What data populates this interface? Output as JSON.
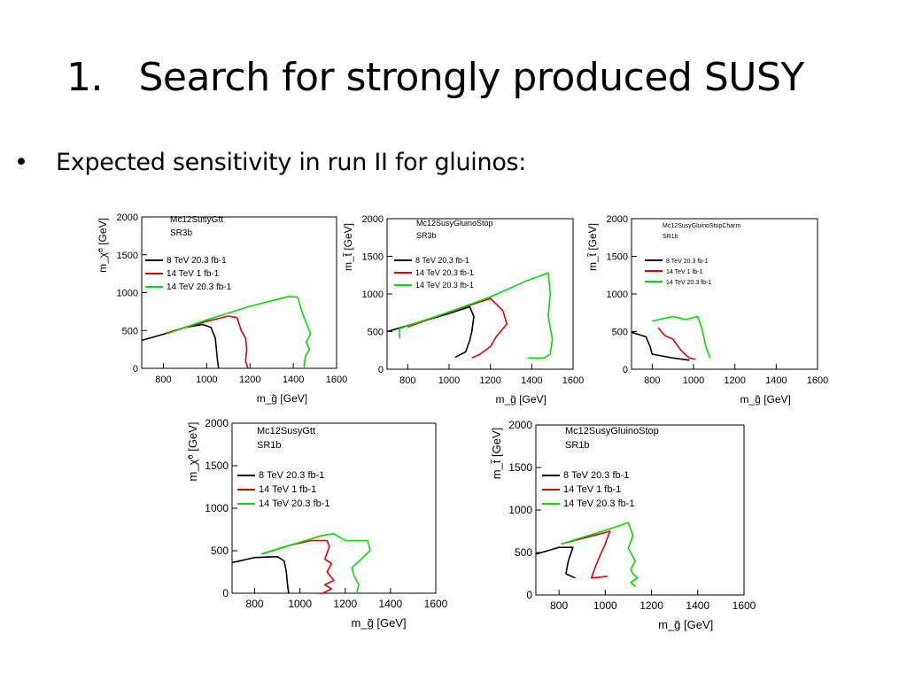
{
  "slide": {
    "title": "1.   Search for strongly produced SUSY",
    "bullet_marker": "•",
    "bullet": "Expected sensitivity in run II for gluinos:"
  },
  "colors": {
    "8tev": "#000000",
    "14tev_1fb": "#e00000",
    "14tev_203fb": "#00dd00",
    "axes": "#000000",
    "background": "#ffffff"
  },
  "chart_data": [
    {
      "type": "line",
      "title_lines": [
        "Mc12SusyGtt",
        "SR3b"
      ],
      "xlabel": "m_g̃ [GeV]",
      "ylabel": "m_χ̃⁰ [GeV]",
      "xlim": [
        700,
        1600
      ],
      "ylim": [
        0,
        2000
      ],
      "xticks": [
        800,
        1000,
        1200,
        1400,
        1600
      ],
      "yticks": [
        0,
        500,
        1000,
        1500,
        2000
      ],
      "legend": [
        "8 TeV 20.3 fb-1",
        "14 TeV 1 fb-1",
        "14 TeV 20.3 fb-1"
      ],
      "series": [
        {
          "name": "8 TeV 20.3 fb-1",
          "x": [
            700,
            800,
            900,
            980,
            1020,
            1040,
            1045,
            1050,
            1055
          ],
          "y": [
            370,
            450,
            540,
            580,
            540,
            400,
            250,
            100,
            0
          ]
        },
        {
          "name": "14 TeV 1 fb-1",
          "x": [
            810,
            900,
            1000,
            1100,
            1140,
            1160,
            1180,
            1185,
            1180,
            1190
          ],
          "y": [
            460,
            540,
            620,
            690,
            670,
            500,
            400,
            250,
            100,
            0
          ]
        },
        {
          "name": "14 TeV 20.3 fb-1",
          "x": [
            820,
            1000,
            1200,
            1380,
            1420,
            1440,
            1460,
            1480,
            1460,
            1475,
            1455,
            1450
          ],
          "y": [
            460,
            640,
            820,
            950,
            940,
            750,
            600,
            450,
            350,
            250,
            150,
            0
          ]
        }
      ]
    },
    {
      "type": "line",
      "title_lines": [
        "Mc12SusyGluinoStop",
        "SR3b"
      ],
      "xlabel": "m_g̃ [GeV]",
      "ylabel": "m_t̃ [GeV]",
      "xlim": [
        700,
        1600
      ],
      "ylim": [
        0,
        2000
      ],
      "xticks": [
        800,
        1000,
        1200,
        1400,
        1600
      ],
      "yticks": [
        0,
        500,
        1000,
        1500,
        2000
      ],
      "legend": [
        "8 TeV 20.3 fb-1",
        "14 TeV 20.3 fb-1",
        "14 TeV 20.3 fb-1"
      ],
      "series": [
        {
          "name": "8 TeV 20.3 fb-1",
          "x": [
            700,
            850,
            1000,
            1100,
            1120,
            1110,
            1100,
            1080,
            1030
          ],
          "y": [
            500,
            620,
            740,
            830,
            700,
            500,
            380,
            230,
            160
          ]
        },
        {
          "name": "14 TeV 20.3 fb-1",
          "x": [
            800,
            1000,
            1200,
            1260,
            1280,
            1230,
            1200,
            1150,
            1110
          ],
          "y": [
            560,
            760,
            940,
            780,
            600,
            440,
            300,
            200,
            150
          ]
        },
        {
          "name": "14 TeV 20.3 fb-1",
          "x": [
            760,
            760,
            760,
            1000,
            1200,
            1380,
            1480,
            1490,
            1480,
            1500,
            1490,
            1460,
            1380
          ],
          "y": [
            540,
            420,
            540,
            760,
            960,
            1180,
            1280,
            1000,
            700,
            400,
            200,
            150,
            150
          ]
        }
      ]
    },
    {
      "type": "line",
      "title_lines": [
        "Mc12SusyGluinoStopCharm",
        "SR1b"
      ],
      "xlabel": "m_g̃ [GeV]",
      "ylabel": "m_t̃ [GeV]",
      "xlim": [
        700,
        1600
      ],
      "ylim": [
        0,
        2000
      ],
      "xticks": [
        800,
        1000,
        1200,
        1400,
        1600
      ],
      "yticks": [
        0,
        500,
        1000,
        1500,
        2000
      ],
      "legend": [
        "8 TeV 20.3 fb-1",
        "14 TeV 1 fb-1",
        "14 TeV 20.3 fb-1"
      ],
      "series": [
        {
          "name": "8 TeV 20.3 fb-1",
          "x": [
            700,
            770,
            790,
            800,
            900,
            980
          ],
          "y": [
            490,
            430,
            300,
            200,
            150,
            120
          ]
        },
        {
          "name": "14 TeV 1 fb-1",
          "x": [
            830,
            860,
            900,
            940,
            980,
            1010
          ],
          "y": [
            550,
            450,
            400,
            250,
            150,
            130
          ]
        },
        {
          "name": "14 TeV 20.3 fb-1",
          "x": [
            800,
            900,
            960,
            1020,
            1040,
            1060,
            1080
          ],
          "y": [
            640,
            700,
            660,
            700,
            550,
            300,
            150
          ]
        }
      ]
    },
    {
      "type": "line",
      "title_lines": [
        "Mc12SusyGtt",
        "SR1b"
      ],
      "xlabel": "m_g̃ [GeV]",
      "ylabel": "m_χ̃⁰ [GeV]",
      "xlim": [
        700,
        1600
      ],
      "ylim": [
        0,
        2000
      ],
      "xticks": [
        800,
        1000,
        1200,
        1400,
        1600
      ],
      "yticks": [
        0,
        500,
        1000,
        1500,
        2000
      ],
      "legend": [
        "8 TeV 20.3 fb-1",
        "14 TeV 1 fb-1",
        "14 TeV 20.3 fb-1"
      ],
      "series": [
        {
          "name": "8 TeV 20.3 fb-1",
          "x": [
            700,
            800,
            900,
            930,
            940,
            945,
            950
          ],
          "y": [
            360,
            420,
            430,
            380,
            250,
            100,
            0
          ]
        },
        {
          "name": "14 TeV 1 fb-1",
          "x": [
            830,
            950,
            1050,
            1120,
            1130,
            1110,
            1140,
            1120,
            1150,
            1110,
            1140,
            1100,
            1080
          ],
          "y": [
            460,
            560,
            620,
            620,
            550,
            400,
            350,
            250,
            150,
            100,
            50,
            0,
            0
          ]
        },
        {
          "name": "14 TeV 20.3 fb-1",
          "x": [
            830,
            1000,
            1100,
            1150,
            1200,
            1300,
            1310,
            1270,
            1230,
            1240,
            1260,
            1250
          ],
          "y": [
            460,
            600,
            680,
            700,
            620,
            620,
            500,
            400,
            300,
            200,
            100,
            0
          ]
        }
      ]
    },
    {
      "type": "line",
      "title_lines": [
        "Mc12SusyGluinoStop",
        "SR1b"
      ],
      "xlabel": "m_g̃ [GeV]",
      "ylabel": "m_t̃ [GeV]",
      "xlim": [
        700,
        1600
      ],
      "ylim": [
        0,
        2000
      ],
      "xticks": [
        800,
        1000,
        1200,
        1400,
        1600
      ],
      "yticks": [
        0,
        500,
        1000,
        1500,
        2000
      ],
      "legend": [
        "8 TeV 20.3 fb-1",
        "14 TeV 1 fb-1",
        "14 TeV 20.3 fb-1"
      ],
      "series": [
        {
          "name": "8 TeV 20.3 fb-1",
          "x": [
            700,
            800,
            860,
            840,
            830,
            870
          ],
          "y": [
            480,
            560,
            560,
            400,
            250,
            200
          ]
        },
        {
          "name": "14 TeV 1 fb-1",
          "x": [
            810,
            950,
            1020,
            1000,
            980,
            960,
            940,
            1010
          ],
          "y": [
            600,
            700,
            750,
            600,
            480,
            350,
            200,
            220
          ]
        },
        {
          "name": "14 TeV 20.3 fb-1",
          "x": [
            810,
            1000,
            1100,
            1120,
            1100,
            1130,
            1110,
            1120,
            1140,
            1110,
            1130
          ],
          "y": [
            600,
            760,
            850,
            700,
            550,
            400,
            300,
            250,
            200,
            150,
            100
          ]
        }
      ]
    }
  ]
}
